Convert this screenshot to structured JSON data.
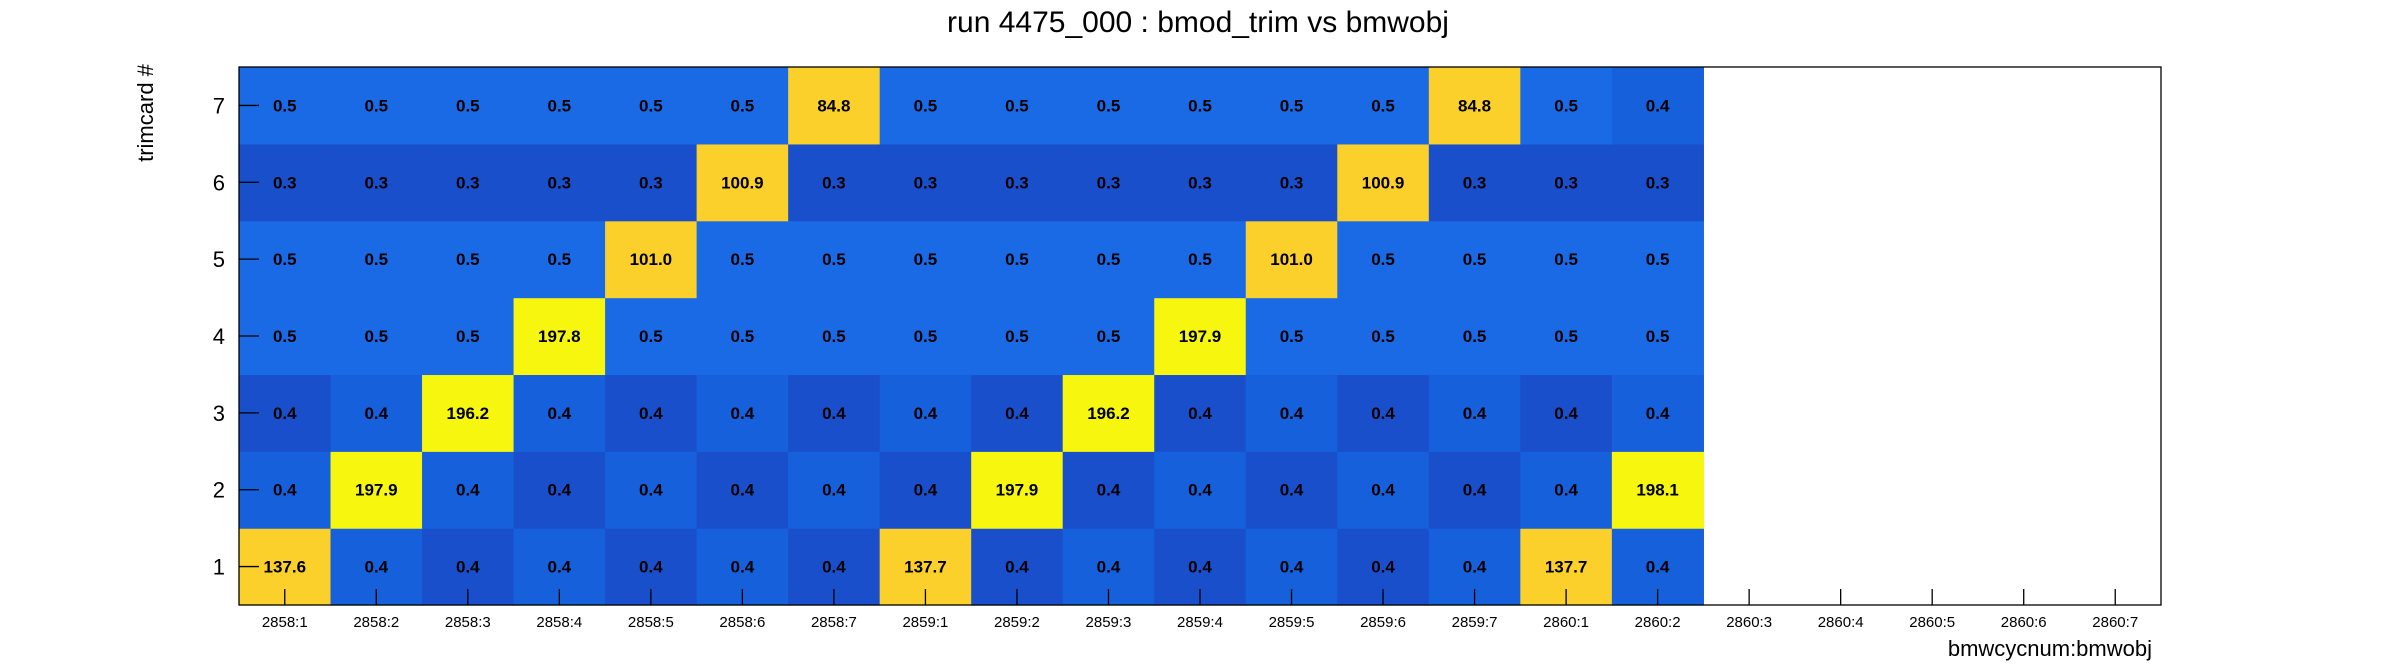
{
  "chart_data": {
    "type": "heatmap",
    "title": "run 4475_000 : bmod_trim vs bmwobj",
    "xlabel": "bmwcycnum:bmwobj",
    "ylabel": "trimcard #",
    "x_categories": [
      "2858:1",
      "2858:2",
      "2858:3",
      "2858:4",
      "2858:5",
      "2858:6",
      "2858:7",
      "2859:1",
      "2859:2",
      "2859:3",
      "2859:4",
      "2859:5",
      "2859:6",
      "2859:7",
      "2860:1",
      "2860:2",
      "2860:3",
      "2860:4",
      "2860:5",
      "2860:6",
      "2860:7"
    ],
    "y_categories": [
      "1",
      "2",
      "3",
      "4",
      "5",
      "6",
      "7"
    ],
    "grid": false,
    "values": [
      [
        "137.6",
        "0.4",
        "0.4",
        "0.4",
        "0.4",
        "0.4",
        "0.4",
        "137.7",
        "0.4",
        "0.4",
        "0.4",
        "0.4",
        "0.4",
        "0.4",
        "137.7",
        "0.4",
        null,
        null,
        null,
        null,
        null
      ],
      [
        "0.4",
        "197.9",
        "0.4",
        "0.4",
        "0.4",
        "0.4",
        "0.4",
        "0.4",
        "197.9",
        "0.4",
        "0.4",
        "0.4",
        "0.4",
        "0.4",
        "0.4",
        "198.1",
        null,
        null,
        null,
        null,
        null
      ],
      [
        "0.4",
        "0.4",
        "196.2",
        "0.4",
        "0.4",
        "0.4",
        "0.4",
        "0.4",
        "0.4",
        "196.2",
        "0.4",
        "0.4",
        "0.4",
        "0.4",
        "0.4",
        "0.4",
        null,
        null,
        null,
        null,
        null
      ],
      [
        "0.5",
        "0.5",
        "0.5",
        "197.8",
        "0.5",
        "0.5",
        "0.5",
        "0.5",
        "0.5",
        "0.5",
        "197.9",
        "0.5",
        "0.5",
        "0.5",
        "0.5",
        "0.5",
        null,
        null,
        null,
        null,
        null
      ],
      [
        "0.5",
        "0.5",
        "0.5",
        "0.5",
        "101.0",
        "0.5",
        "0.5",
        "0.5",
        "0.5",
        "0.5",
        "0.5",
        "101.0",
        "0.5",
        "0.5",
        "0.5",
        "0.5",
        null,
        null,
        null,
        null,
        null
      ],
      [
        "0.3",
        "0.3",
        "0.3",
        "0.3",
        "0.3",
        "100.9",
        "0.3",
        "0.3",
        "0.3",
        "0.3",
        "0.3",
        "0.3",
        "100.9",
        "0.3",
        "0.3",
        "0.3",
        null,
        null,
        null,
        null,
        null
      ],
      [
        "0.5",
        "0.5",
        "0.5",
        "0.5",
        "0.5",
        "0.5",
        "84.8",
        "0.5",
        "0.5",
        "0.5",
        "0.5",
        "0.5",
        "0.5",
        "84.8",
        "0.5",
        "0.4",
        null,
        null,
        null,
        null,
        null
      ]
    ],
    "colors": {
      "low_dark": "#1a4fcc",
      "low_mid": "#1660dc",
      "low_light": "#1a6ae6",
      "mid": "#fbd02a",
      "high": "#f6f60f",
      "frame": "#000000"
    }
  }
}
